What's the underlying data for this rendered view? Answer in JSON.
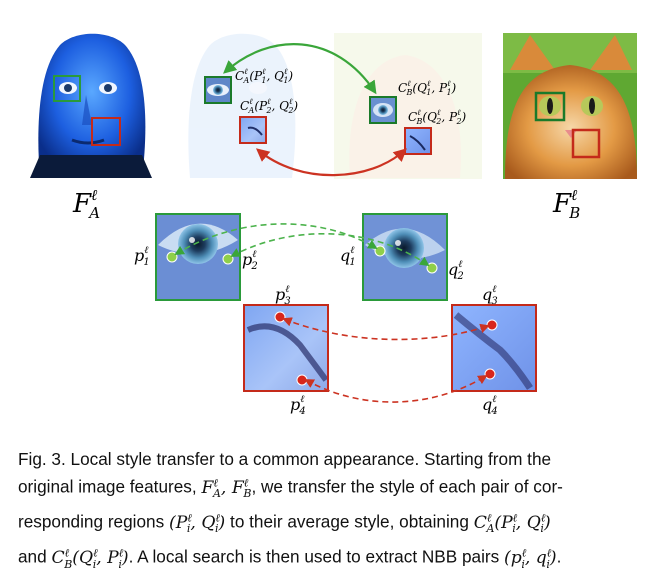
{
  "figure": {
    "labels": {
      "FA": "F",
      "FA_sub": "A",
      "FA_sup": "ℓ",
      "FB": "F",
      "FB_sub": "B",
      "FB_sup": "ℓ",
      "CA1": "C",
      "CA1_args": "(P₁, Q₁)",
      "CA2_args": "(P₂, Q₂)",
      "CB1_args": "(Q₁, P₁)",
      "CB2_args": "(Q₂, P₂)",
      "sup_l": "ℓ",
      "sub_A": "A",
      "sub_B": "B",
      "p1": "p",
      "p2": "p",
      "p3": "p",
      "p4": "p",
      "q1": "q",
      "q2": "q",
      "q3": "q",
      "q4": "q",
      "idx1": "1",
      "idx2": "2",
      "idx3": "3",
      "idx4": "4"
    },
    "colors": {
      "green": "#1a7a2a",
      "red": "#c42a1a",
      "green_dot": "#8fcf4a",
      "red_dot": "#d8261b",
      "arrow_green": "#3aa63a",
      "arrow_red": "#cc3322"
    }
  },
  "caption": {
    "line1": "Fig. 3.  Local style transfer to a common appearance. Starting from the",
    "line2a": "original image features, ",
    "line2b": ", we transfer the style of each pair of cor-",
    "line3a": "responding regions ",
    "line3b": " to their average style, obtaining ",
    "line4a": "and ",
    "line4b": ". A local search is then used to extract NBB pairs ",
    "line4c": "."
  }
}
